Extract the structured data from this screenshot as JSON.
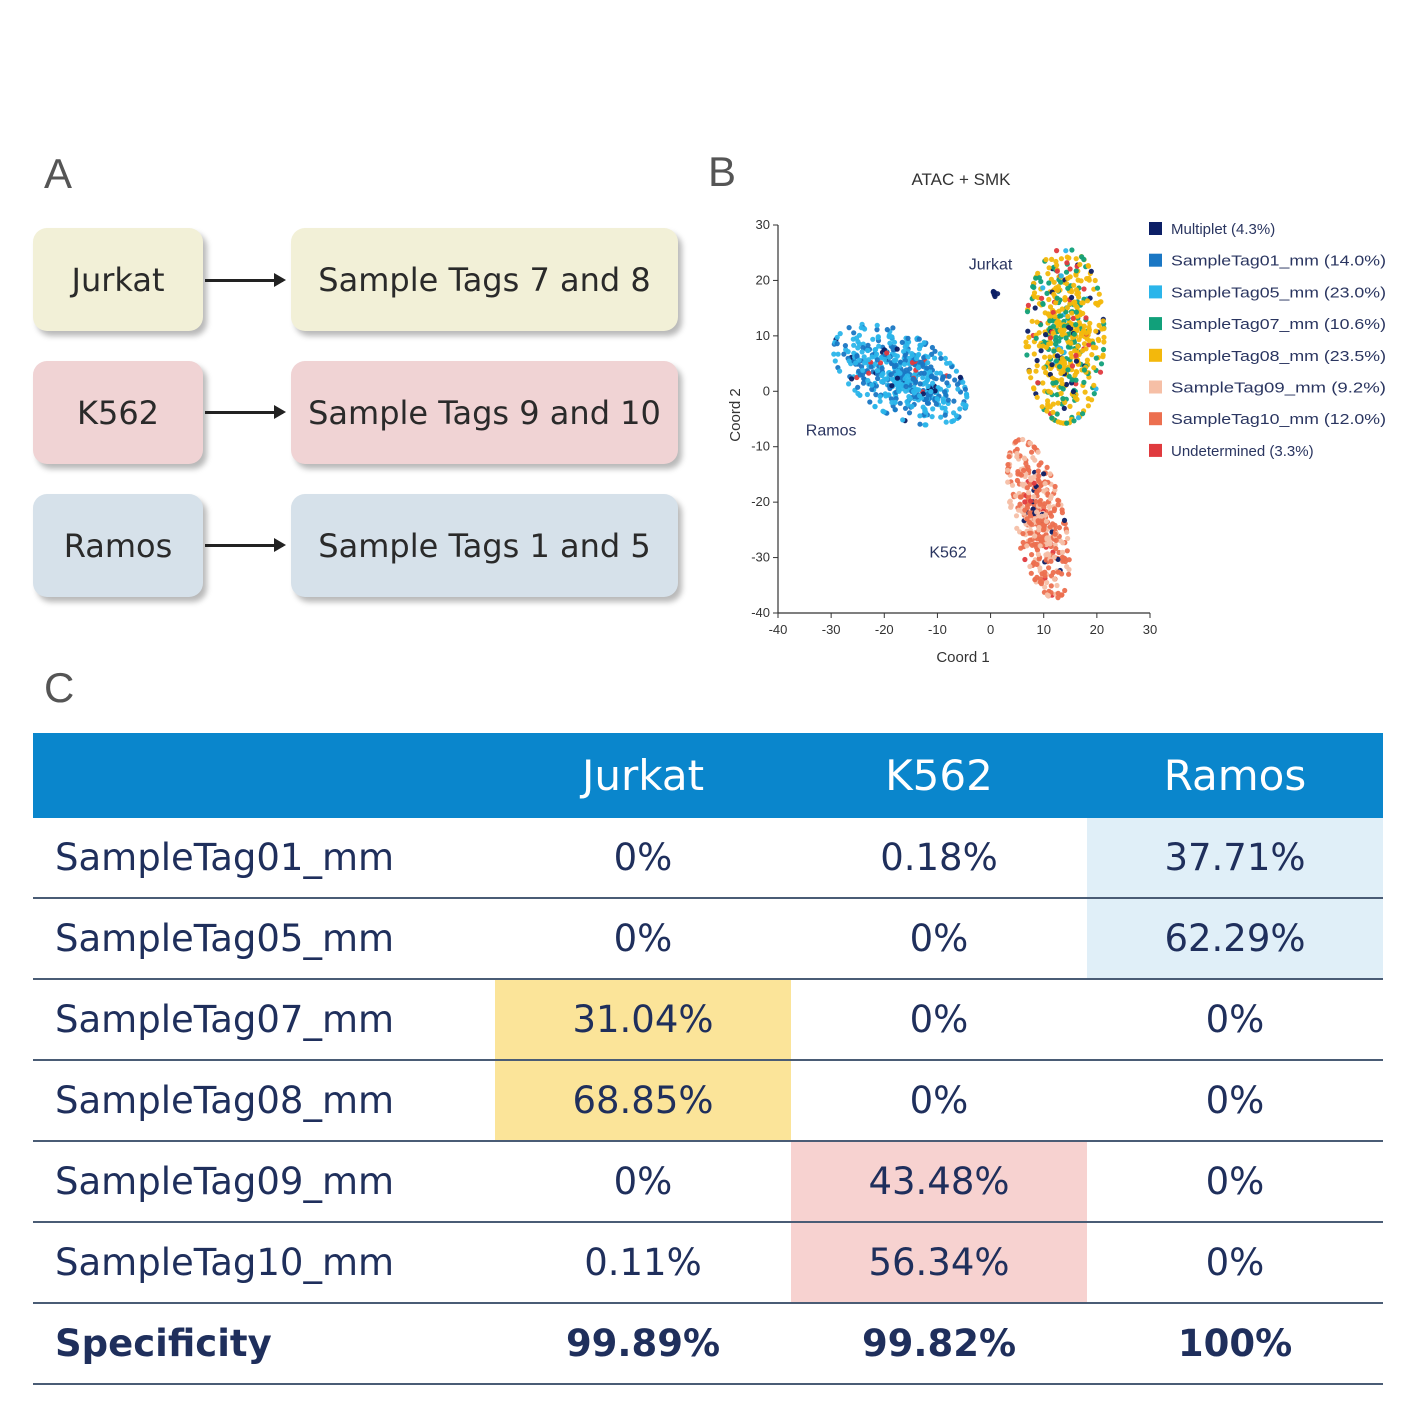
{
  "panels": {
    "a": "A",
    "b": "B",
    "c": "C"
  },
  "panel_a": {
    "rows": [
      {
        "cell_line": "Jurkat",
        "tags": "Sample Tags 7 and 8",
        "color": "#f2f0d7"
      },
      {
        "cell_line": "K562",
        "tags": "Sample Tags 9 and 10",
        "color": "#f0d3d4"
      },
      {
        "cell_line": "Ramos",
        "tags": "Sample Tags 1 and 5",
        "color": "#d6e1ea"
      }
    ]
  },
  "chart_data": {
    "type": "scatter",
    "title": "ATAC + SMK",
    "xlabel": "Coord 1",
    "ylabel": "Coord 2",
    "xlim": [
      -40,
      30
    ],
    "ylim": [
      -40,
      30
    ],
    "xticks": [
      -40,
      -30,
      -20,
      -10,
      0,
      10,
      20,
      30
    ],
    "yticks": [
      30,
      20,
      10,
      0,
      -10,
      -20,
      -30,
      -40
    ],
    "cluster_labels": [
      {
        "text": "Jurkat",
        "x": 0,
        "y": 22
      },
      {
        "text": "Ramos",
        "x": -30,
        "y": -8
      },
      {
        "text": "K562",
        "x": -8,
        "y": -30
      }
    ],
    "legend": [
      {
        "label": "Multiplet (4.3%)",
        "color": "#0c1f66"
      },
      {
        "label": "SampleTag01_mm (14.0%)",
        "color": "#1a77c4"
      },
      {
        "label": "SampleTag05_mm (23.0%)",
        "color": "#2bb5ea"
      },
      {
        "label": "SampleTag07_mm (10.6%)",
        "color": "#11a07a"
      },
      {
        "label": "SampleTag08_mm (23.5%)",
        "color": "#f3b80c"
      },
      {
        "label": "SampleTag09_mm (9.2%)",
        "color": "#f6bfa6"
      },
      {
        "label": "SampleTag10_mm (12.0%)",
        "color": "#ec6f4f"
      },
      {
        "label": "Undetermined (3.3%)",
        "color": "#e03a3e"
      }
    ],
    "clusters": [
      {
        "name": "Ramos",
        "cx": -17,
        "cy": 3,
        "rx": 13,
        "ry": 7,
        "rot": -28,
        "n": 520,
        "mix": [
          [
            "#2bb5ea",
            0.55
          ],
          [
            "#1a77c4",
            0.38
          ],
          [
            "#0c1f66",
            0.04
          ],
          [
            "#e03a3e",
            0.03
          ]
        ]
      },
      {
        "name": "Jurkat",
        "cx": 14,
        "cy": 10,
        "rx": 7,
        "ry": 15,
        "rot": 0,
        "n": 560,
        "mix": [
          [
            "#f3b80c",
            0.62
          ],
          [
            "#11a07a",
            0.26
          ],
          [
            "#0c1f66",
            0.06
          ],
          [
            "#e03a3e",
            0.04
          ],
          [
            "#2bb5ea",
            0.02
          ]
        ]
      },
      {
        "name": "K562",
        "cx": 9,
        "cy": -23,
        "rx": 4.5,
        "ry": 14,
        "rot": 14,
        "n": 430,
        "mix": [
          [
            "#ec6f4f",
            0.55
          ],
          [
            "#f6bfa6",
            0.36
          ],
          [
            "#0c1f66",
            0.05
          ],
          [
            "#e03a3e",
            0.04
          ]
        ]
      },
      {
        "name": "Jurkat-small",
        "cx": 0.8,
        "cy": 17.5,
        "rx": 0.5,
        "ry": 0.6,
        "rot": 0,
        "n": 8,
        "mix": [
          [
            "#0c1f66",
            1.0
          ]
        ]
      }
    ]
  },
  "table": {
    "headers": [
      "",
      "Jurkat",
      "K562",
      "Ramos"
    ],
    "rows": [
      {
        "label": "SampleTag01_mm",
        "values": [
          "0%",
          "0.18%",
          "37.71%"
        ],
        "highlight": [
          null,
          null,
          "b"
        ]
      },
      {
        "label": "SampleTag05_mm",
        "values": [
          "0%",
          "0%",
          "62.29%"
        ],
        "highlight": [
          null,
          null,
          "b"
        ]
      },
      {
        "label": "SampleTag07_mm",
        "values": [
          "31.04%",
          "0%",
          "0%"
        ],
        "highlight": [
          "y",
          null,
          null
        ]
      },
      {
        "label": "SampleTag08_mm",
        "values": [
          "68.85%",
          "0%",
          "0%"
        ],
        "highlight": [
          "y",
          null,
          null
        ]
      },
      {
        "label": "SampleTag09_mm",
        "values": [
          "0%",
          "43.48%",
          "0%"
        ],
        "highlight": [
          null,
          "p",
          null
        ]
      },
      {
        "label": "SampleTag10_mm",
        "values": [
          "0.11%",
          "56.34%",
          "0%"
        ],
        "highlight": [
          null,
          "p",
          null
        ]
      },
      {
        "label": "Specificity",
        "values": [
          "99.89%",
          "99.82%",
          "100%"
        ],
        "highlight": [
          null,
          null,
          null
        ],
        "bold": true
      }
    ]
  }
}
